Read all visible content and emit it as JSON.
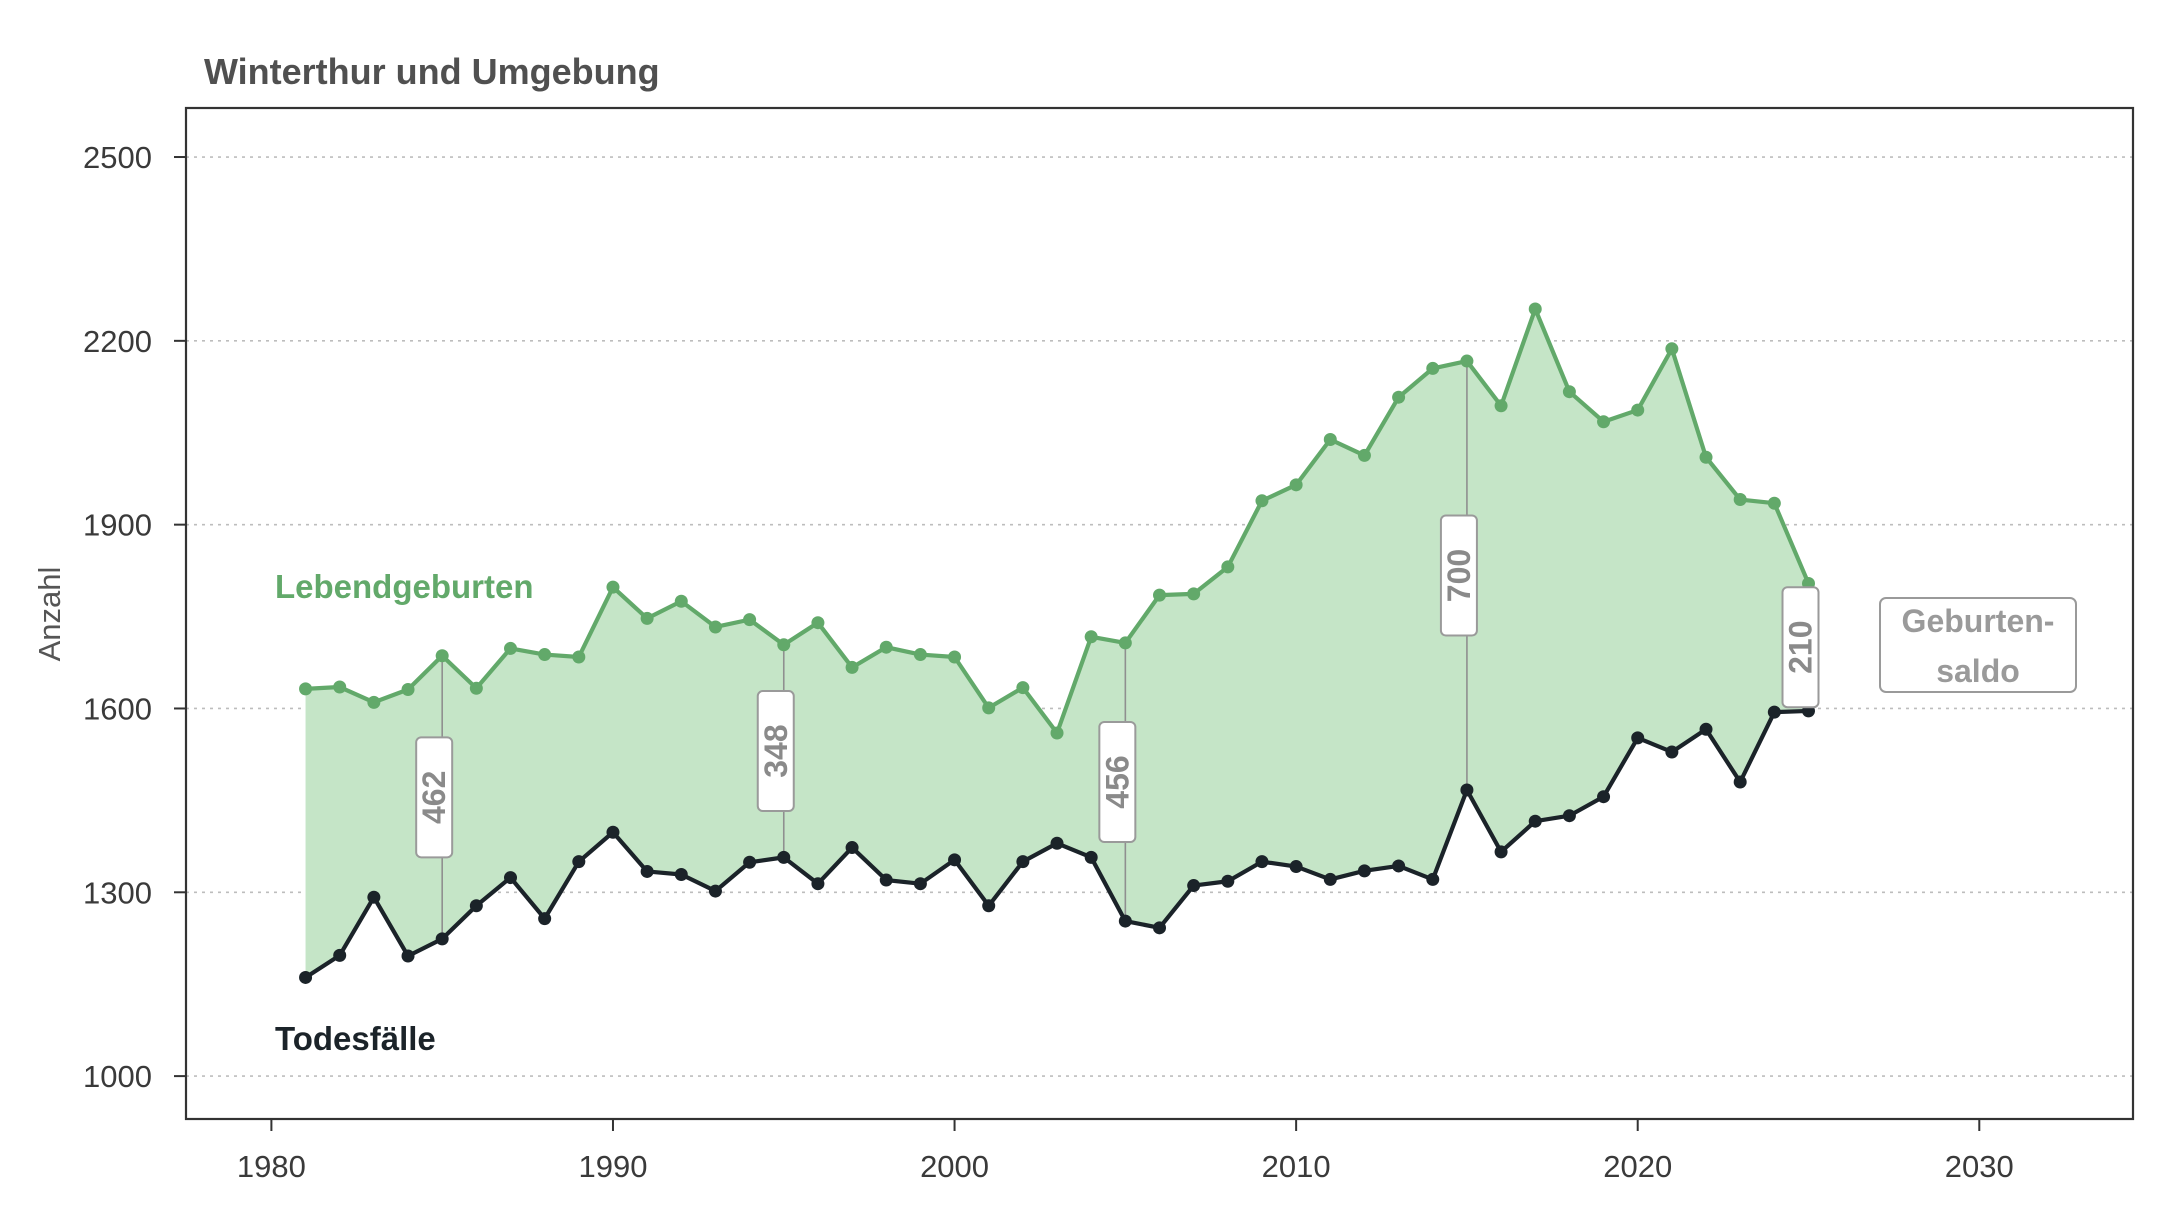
{
  "title": "Winterthur und Umgebung",
  "chart_data": {
    "type": "line",
    "title": "Winterthur und Umgebung",
    "ylabel": "Anzahl",
    "xlabel": "",
    "xlim": [
      1977.5,
      2034.5
    ],
    "ylim": [
      930,
      2580
    ],
    "xticks": [
      1980,
      1990,
      2000,
      2010,
      2020,
      2030
    ],
    "yticks": [
      1000,
      1300,
      1600,
      1900,
      2200,
      2500
    ],
    "grid": "horizontal dotted",
    "x": [
      1981,
      1982,
      1983,
      1984,
      1985,
      1986,
      1987,
      1988,
      1989,
      1990,
      1991,
      1992,
      1993,
      1994,
      1995,
      1996,
      1997,
      1998,
      1999,
      2000,
      2001,
      2002,
      2003,
      2004,
      2005,
      2006,
      2007,
      2008,
      2009,
      2010,
      2011,
      2012,
      2013,
      2014,
      2015,
      2016,
      2017,
      2018,
      2019,
      2020,
      2021,
      2022,
      2023,
      2024,
      2025
    ],
    "series": [
      {
        "name": "Lebendgeburten",
        "color": "#62a96a",
        "values": [
          1632,
          1635,
          1610,
          1631,
          1686,
          1633,
          1698,
          1688,
          1684,
          1798,
          1747,
          1775,
          1733,
          1745,
          1704,
          1740,
          1667,
          1700,
          1688,
          1684,
          1601,
          1634,
          1560,
          1717,
          1707,
          1785,
          1787,
          1831,
          1939,
          1965,
          2039,
          2013,
          2108,
          2155,
          2167,
          2094,
          2252,
          2117,
          2068,
          2087,
          2187,
          2010,
          1941,
          1935,
          1804
        ]
      },
      {
        "name": "Todesfälle",
        "color": "#1b2329",
        "values": [
          1161,
          1197,
          1292,
          1196,
          1224,
          1278,
          1324,
          1257,
          1350,
          1398,
          1334,
          1329,
          1302,
          1349,
          1357,
          1314,
          1373,
          1320,
          1314,
          1353,
          1278,
          1350,
          1380,
          1357,
          1253,
          1242,
          1311,
          1318,
          1350,
          1342,
          1321,
          1335,
          1343,
          1321,
          1467,
          1366,
          1416,
          1425,
          1456,
          1552,
          1529,
          1566,
          1480,
          1594,
          1596
        ]
      }
    ],
    "area_fill": "#c5e5c7",
    "annotations": [
      {
        "year": 1985,
        "label": "462"
      },
      {
        "year": 1995,
        "label": "348"
      },
      {
        "year": 2005,
        "label": "456"
      },
      {
        "year": 2015,
        "label": "700"
      },
      {
        "year": 2025,
        "label": "210"
      }
    ],
    "legend": {
      "label": "Geburten-\nsaldo",
      "lines": [
        "Geburten-",
        "saldo"
      ],
      "placement": "right"
    },
    "series_labels": {
      "births": "Lebendgeburten",
      "deaths": "Todesfälle"
    }
  }
}
